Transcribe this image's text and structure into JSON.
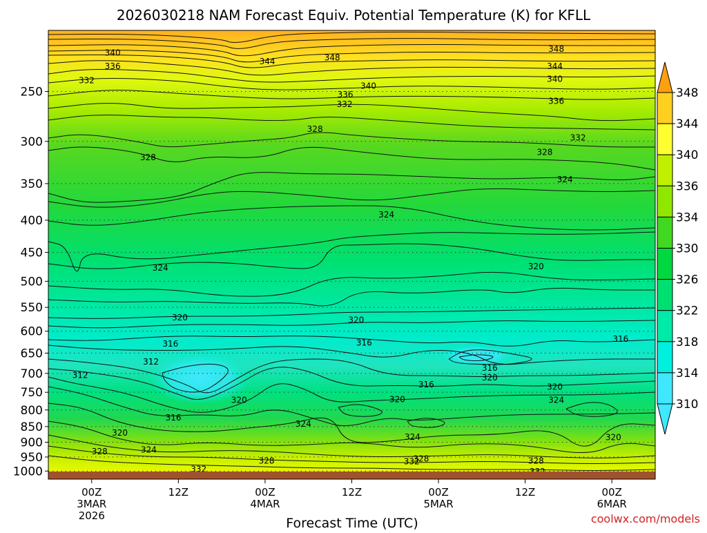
{
  "title": "2026030218 NAM Forecast Equiv. Potential Temperature (K) for KFLL",
  "credit": "coolwx.com/models",
  "chart_data": {
    "type": "heatmap",
    "title": "2026030218 NAM Forecast Equiv. Potential Temperature (K) for KFLL",
    "xlabel": "Forecast Time (UTC)",
    "ylabel": "",
    "x_range_hours": [
      18,
      102
    ],
    "y_range_hpa": [
      1030,
      200
    ],
    "y_scale": "log-pressure",
    "grid": "dotted",
    "x_ticks": [
      {
        "hour": 24,
        "lines": [
          "00Z",
          "3MAR",
          "2026"
        ]
      },
      {
        "hour": 36,
        "lines": [
          "12Z"
        ]
      },
      {
        "hour": 48,
        "lines": [
          "00Z",
          "4MAR"
        ]
      },
      {
        "hour": 60,
        "lines": [
          "12Z"
        ]
      },
      {
        "hour": 72,
        "lines": [
          "00Z",
          "5MAR"
        ]
      },
      {
        "hour": 84,
        "lines": [
          "12Z"
        ]
      },
      {
        "hour": 96,
        "lines": [
          "00Z",
          "6MAR"
        ]
      }
    ],
    "y_ticks": [
      250,
      300,
      350,
      400,
      450,
      500,
      550,
      600,
      650,
      700,
      750,
      800,
      850,
      900,
      950,
      1000
    ],
    "colorbar": {
      "levels": [
        310,
        314,
        318,
        322,
        326,
        330,
        334,
        336,
        340,
        344,
        348
      ],
      "colors": [
        "#3fe8ff",
        "#00f0e0",
        "#00eaa8",
        "#00e070",
        "#00d840",
        "#40d820",
        "#90e800",
        "#c0f000",
        "#ffff30",
        "#ffd020",
        "#ffa010"
      ],
      "extend": "both"
    },
    "contour_labels": [
      {
        "t": 26.9,
        "p": 217,
        "v": "340"
      },
      {
        "t": 26.9,
        "p": 228,
        "v": "336"
      },
      {
        "t": 23.3,
        "p": 240,
        "v": "332"
      },
      {
        "t": 48.3,
        "p": 224,
        "v": "344"
      },
      {
        "t": 57.3,
        "p": 221,
        "v": "348"
      },
      {
        "t": 88.3,
        "p": 214,
        "v": "348"
      },
      {
        "t": 88.1,
        "p": 228,
        "v": "344"
      },
      {
        "t": 88.1,
        "p": 239,
        "v": "340"
      },
      {
        "t": 88.3,
        "p": 259,
        "v": "336"
      },
      {
        "t": 62.3,
        "p": 245,
        "v": "340"
      },
      {
        "t": 59.1,
        "p": 253,
        "v": "336"
      },
      {
        "t": 59.0,
        "p": 262,
        "v": "332"
      },
      {
        "t": 54.9,
        "p": 287,
        "v": "328"
      },
      {
        "t": 91.3,
        "p": 296,
        "v": "332"
      },
      {
        "t": 31.8,
        "p": 318,
        "v": "328"
      },
      {
        "t": 86.7,
        "p": 312,
        "v": "328"
      },
      {
        "t": 89.5,
        "p": 345,
        "v": "324"
      },
      {
        "t": 64.8,
        "p": 392,
        "v": "324"
      },
      {
        "t": 33.5,
        "p": 476,
        "v": "324"
      },
      {
        "t": 85.5,
        "p": 474,
        "v": "320"
      },
      {
        "t": 36.2,
        "p": 571,
        "v": "320"
      },
      {
        "t": 60.6,
        "p": 576,
        "v": "320"
      },
      {
        "t": 34.9,
        "p": 628,
        "v": "316"
      },
      {
        "t": 61.7,
        "p": 626,
        "v": "316"
      },
      {
        "t": 97.2,
        "p": 617,
        "v": "316"
      },
      {
        "t": 32.2,
        "p": 671,
        "v": "312"
      },
      {
        "t": 22.4,
        "p": 705,
        "v": "312"
      },
      {
        "t": 79.1,
        "p": 686,
        "v": "316"
      },
      {
        "t": 79.1,
        "p": 711,
        "v": "320"
      },
      {
        "t": 70.3,
        "p": 729,
        "v": "316"
      },
      {
        "t": 88.1,
        "p": 736,
        "v": "320"
      },
      {
        "t": 66.3,
        "p": 770,
        "v": "320"
      },
      {
        "t": 44.4,
        "p": 772,
        "v": "320"
      },
      {
        "t": 88.3,
        "p": 772,
        "v": "324"
      },
      {
        "t": 35.3,
        "p": 823,
        "v": "316"
      },
      {
        "t": 53.3,
        "p": 842,
        "v": "324"
      },
      {
        "t": 27.9,
        "p": 870,
        "v": "320"
      },
      {
        "t": 68.4,
        "p": 883,
        "v": "324"
      },
      {
        "t": 96.2,
        "p": 884,
        "v": "320"
      },
      {
        "t": 31.9,
        "p": 925,
        "v": "324"
      },
      {
        "t": 25.1,
        "p": 931,
        "v": "328"
      },
      {
        "t": 48.2,
        "p": 963,
        "v": "328"
      },
      {
        "t": 69.6,
        "p": 956,
        "v": "328"
      },
      {
        "t": 68.3,
        "p": 966,
        "v": "332"
      },
      {
        "t": 85.5,
        "p": 963,
        "v": "328"
      },
      {
        "t": 38.8,
        "p": 993,
        "v": "332"
      },
      {
        "t": 85.7,
        "p": 1002,
        "v": "332"
      }
    ]
  }
}
